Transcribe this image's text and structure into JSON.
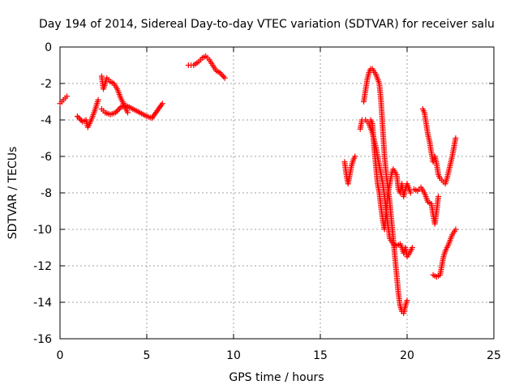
{
  "chart_data": {
    "type": "scatter",
    "title": "Day 194 of 2014, Sidereal Day-to-day VTEC variation (SDTVAR) for receiver salu",
    "xlabel": "GPS time / hours",
    "ylabel": "SDTVAR / TECUs",
    "xlim": [
      0,
      25
    ],
    "ylim": [
      -16,
      0
    ],
    "xticks": [
      "0",
      "5",
      "10",
      "15",
      "20",
      "25"
    ],
    "yticks": [
      "0",
      "-2",
      "-4",
      "-6",
      "-8",
      "-10",
      "-12",
      "-14",
      "-16"
    ],
    "grid": true,
    "marker": "+",
    "color": "#ff0000",
    "segments": [
      [
        [
          0.0,
          -3.1
        ],
        [
          0.2,
          -2.9
        ],
        [
          0.4,
          -2.7
        ]
      ],
      [
        [
          1.0,
          -3.8
        ],
        [
          1.3,
          -4.1
        ],
        [
          1.5,
          -4.0
        ],
        [
          1.6,
          -4.4
        ],
        [
          1.8,
          -4.0
        ],
        [
          2.0,
          -3.5
        ],
        [
          2.2,
          -2.9
        ]
      ],
      [
        [
          2.4,
          -1.6
        ],
        [
          2.5,
          -2.3
        ],
        [
          2.6,
          -2.0
        ],
        [
          2.7,
          -1.7
        ],
        [
          2.9,
          -1.9
        ],
        [
          3.1,
          -2.0
        ],
        [
          3.3,
          -2.3
        ],
        [
          3.5,
          -2.8
        ],
        [
          3.7,
          -3.2
        ],
        [
          3.9,
          -3.6
        ]
      ],
      [
        [
          2.4,
          -3.4
        ],
        [
          2.6,
          -3.6
        ],
        [
          2.9,
          -3.7
        ],
        [
          3.2,
          -3.6
        ],
        [
          3.5,
          -3.3
        ],
        [
          3.8,
          -3.2
        ],
        [
          4.2,
          -3.4
        ],
        [
          4.6,
          -3.6
        ],
        [
          5.0,
          -3.8
        ],
        [
          5.3,
          -3.9
        ],
        [
          5.6,
          -3.5
        ],
        [
          5.9,
          -3.1
        ]
      ],
      [
        [
          7.4,
          -1.0
        ],
        [
          7.7,
          -1.0
        ],
        [
          8.0,
          -0.8
        ],
        [
          8.2,
          -0.6
        ],
        [
          8.4,
          -0.5
        ],
        [
          8.6,
          -0.7
        ],
        [
          8.8,
          -1.0
        ],
        [
          9.0,
          -1.3
        ],
        [
          9.2,
          -1.4
        ],
        [
          9.5,
          -1.7
        ]
      ],
      [
        [
          16.4,
          -6.3
        ],
        [
          16.5,
          -7.0
        ],
        [
          16.6,
          -7.5
        ],
        [
          16.7,
          -7.0
        ],
        [
          16.8,
          -6.5
        ],
        [
          16.9,
          -6.2
        ],
        [
          17.0,
          -6.0
        ]
      ],
      [
        [
          17.3,
          -4.5
        ],
        [
          17.4,
          -4.0
        ],
        [
          17.6,
          -4.0
        ],
        [
          17.8,
          -4.2
        ],
        [
          18.0,
          -4.7
        ],
        [
          18.2,
          -5.5
        ],
        [
          18.3,
          -6.0
        ],
        [
          18.4,
          -6.5
        ],
        [
          18.5,
          -7.0
        ],
        [
          18.6,
          -7.5
        ],
        [
          18.7,
          -8.2
        ],
        [
          18.8,
          -9.0
        ],
        [
          18.9,
          -9.8
        ],
        [
          19.0,
          -10.5
        ],
        [
          19.2,
          -10.8
        ],
        [
          19.4,
          -10.9
        ],
        [
          19.6,
          -10.8
        ],
        [
          19.7,
          -11.0
        ],
        [
          19.8,
          -11.3
        ],
        [
          19.9,
          -11.0
        ],
        [
          20.0,
          -11.5
        ],
        [
          20.2,
          -11.2
        ],
        [
          20.3,
          -11.0
        ]
      ],
      [
        [
          17.5,
          -3.0
        ],
        [
          17.6,
          -2.4
        ],
        [
          17.7,
          -1.8
        ],
        [
          17.8,
          -1.4
        ],
        [
          17.9,
          -1.2
        ],
        [
          18.0,
          -1.2
        ],
        [
          18.2,
          -1.5
        ],
        [
          18.4,
          -2.0
        ],
        [
          18.5,
          -3.0
        ],
        [
          18.6,
          -4.5
        ],
        [
          18.7,
          -6.0
        ],
        [
          18.8,
          -7.0
        ],
        [
          19.0,
          -8.5
        ],
        [
          19.2,
          -10.5
        ],
        [
          19.3,
          -11.5
        ],
        [
          19.4,
          -12.5
        ],
        [
          19.5,
          -13.5
        ],
        [
          19.6,
          -14.2
        ],
        [
          19.7,
          -14.5
        ],
        [
          19.8,
          -14.6
        ],
        [
          19.9,
          -14.2
        ],
        [
          20.0,
          -13.9
        ]
      ],
      [
        [
          17.9,
          -4.0
        ],
        [
          18.0,
          -4.2
        ],
        [
          18.1,
          -5.5
        ],
        [
          18.2,
          -6.5
        ],
        [
          18.3,
          -7.5
        ],
        [
          18.4,
          -8.0
        ],
        [
          18.5,
          -8.8
        ],
        [
          18.6,
          -9.5
        ],
        [
          18.7,
          -10.0
        ],
        [
          18.8,
          -9.0
        ],
        [
          18.9,
          -8.0
        ],
        [
          19.0,
          -7.5
        ],
        [
          19.1,
          -7.0
        ],
        [
          19.2,
          -6.7
        ],
        [
          19.4,
          -7.0
        ],
        [
          19.5,
          -7.8
        ],
        [
          19.6,
          -8.0
        ],
        [
          19.7,
          -7.5
        ],
        [
          19.8,
          -8.2
        ],
        [
          19.9,
          -7.8
        ],
        [
          20.0,
          -7.5
        ],
        [
          20.2,
          -8.0
        ]
      ],
      [
        [
          20.4,
          -7.8
        ],
        [
          20.6,
          -7.9
        ],
        [
          20.8,
          -7.7
        ],
        [
          21.0,
          -8.0
        ],
        [
          21.2,
          -8.5
        ],
        [
          21.4,
          -8.6
        ],
        [
          21.5,
          -9.2
        ],
        [
          21.6,
          -9.7
        ],
        [
          21.7,
          -9.0
        ],
        [
          21.8,
          -8.2
        ]
      ],
      [
        [
          20.9,
          -3.4
        ],
        [
          21.0,
          -3.6
        ],
        [
          21.1,
          -4.2
        ],
        [
          21.2,
          -4.8
        ],
        [
          21.3,
          -5.2
        ],
        [
          21.4,
          -5.8
        ],
        [
          21.5,
          -6.3
        ],
        [
          21.6,
          -6.0
        ],
        [
          21.7,
          -6.4
        ],
        [
          21.8,
          -7.0
        ],
        [
          21.9,
          -7.2
        ],
        [
          22.0,
          -7.3
        ],
        [
          22.2,
          -7.5
        ],
        [
          22.3,
          -7.2
        ],
        [
          22.4,
          -6.8
        ],
        [
          22.5,
          -6.4
        ],
        [
          22.6,
          -6.0
        ],
        [
          22.7,
          -5.5
        ],
        [
          22.8,
          -5.0
        ]
      ],
      [
        [
          21.5,
          -12.5
        ],
        [
          21.7,
          -12.6
        ],
        [
          21.9,
          -12.5
        ],
        [
          22.0,
          -12.0
        ],
        [
          22.1,
          -11.5
        ],
        [
          22.2,
          -11.2
        ],
        [
          22.4,
          -10.8
        ],
        [
          22.6,
          -10.3
        ],
        [
          22.8,
          -10.0
        ]
      ]
    ]
  }
}
